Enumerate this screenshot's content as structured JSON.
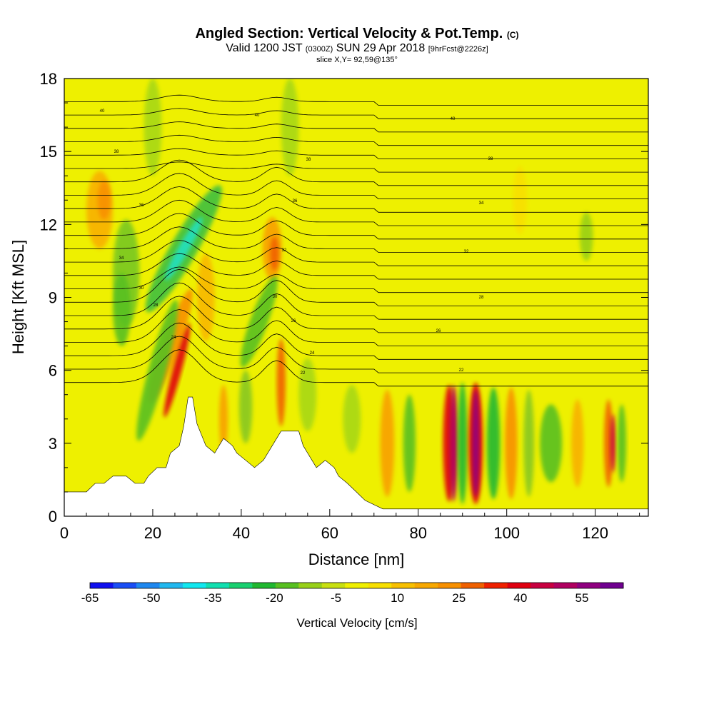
{
  "title": {
    "main": "Angled Section: Vertical Velocity & Pot.Temp.",
    "main_unit": "(C)",
    "valid_prefix": "Valid 1200 JST",
    "valid_utc": "(0300Z)",
    "valid_date": "SUN 29 Apr 2018",
    "valid_fcst": "[9hrFcst@2226z]",
    "slice": "slice X,Y= 92,59@135°"
  },
  "chart_data": {
    "type": "heatmap",
    "xlabel": "Distance [nm]",
    "ylabel": "Height [Kft MSL]",
    "xlim": [
      0,
      132
    ],
    "ylim": [
      0,
      18
    ],
    "x_ticks": [
      0,
      20,
      40,
      60,
      80,
      100,
      120
    ],
    "y_ticks": [
      0,
      3,
      6,
      9,
      12,
      15,
      18
    ],
    "colorbar": {
      "label": "Vertical Velocity [cm/s]",
      "tick_labels": [
        "-65",
        "-50",
        "-35",
        "-20",
        "-5",
        "10",
        "25",
        "40",
        "55"
      ],
      "colors": [
        "#1010f0",
        "#1a4ef5",
        "#1e88f0",
        "#20b8f0",
        "#10e8f0",
        "#10e0b0",
        "#18d070",
        "#20b830",
        "#58c020",
        "#98d018",
        "#c8e010",
        "#f0f000",
        "#f8e000",
        "#f8c000",
        "#f8a800",
        "#f89000",
        "#f06000",
        "#f02000",
        "#e00010",
        "#c80040",
        "#b00060",
        "#900080",
        "#700090"
      ]
    },
    "terrain_kft": [
      [
        0,
        1.0
      ],
      [
        5,
        1.0
      ],
      [
        7,
        1.35
      ],
      [
        9,
        1.35
      ],
      [
        11,
        1.65
      ],
      [
        14,
        1.65
      ],
      [
        16,
        1.35
      ],
      [
        18,
        1.35
      ],
      [
        19,
        1.65
      ],
      [
        21,
        2.0
      ],
      [
        23,
        2.0
      ],
      [
        24,
        2.6
      ],
      [
        26,
        2.9
      ],
      [
        27,
        3.7
      ],
      [
        28,
        4.9
      ],
      [
        29,
        4.9
      ],
      [
        30,
        3.8
      ],
      [
        32,
        2.9
      ],
      [
        34,
        2.6
      ],
      [
        35,
        2.9
      ],
      [
        36,
        3.2
      ],
      [
        38,
        2.9
      ],
      [
        39,
        2.6
      ],
      [
        41,
        2.3
      ],
      [
        43,
        2.0
      ],
      [
        45,
        2.3
      ],
      [
        47,
        2.9
      ],
      [
        49,
        3.5
      ],
      [
        53,
        3.5
      ],
      [
        54,
        2.9
      ],
      [
        55,
        2.6
      ],
      [
        56,
        2.3
      ],
      [
        57,
        2.0
      ],
      [
        59,
        2.3
      ],
      [
        61,
        2.0
      ],
      [
        62,
        1.65
      ],
      [
        64,
        1.35
      ],
      [
        66,
        1.0
      ],
      [
        68,
        0.65
      ],
      [
        72,
        0.3
      ],
      [
        132,
        0.3
      ]
    ],
    "theta_labels": [
      "40",
      "40",
      "40",
      "38",
      "38",
      "38",
      "36",
      "36",
      "34",
      "34",
      "32",
      "32",
      "30",
      "30",
      "28",
      "28",
      "26",
      "26",
      "24",
      "24",
      "22",
      "22"
    ],
    "grid": false
  },
  "colors": {
    "background": "#eef000",
    "terrain": "#ffffff",
    "contour": "#000000"
  }
}
